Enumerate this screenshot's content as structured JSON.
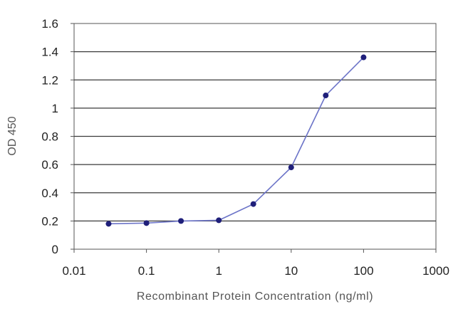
{
  "chart_data": {
    "type": "line",
    "xscale": "log",
    "xlabel": "Recombinant Protein Concentration (ng/ml)",
    "ylabel": "OD 450",
    "xlim": [
      0.01,
      1000
    ],
    "ylim": [
      0,
      1.6
    ],
    "x_ticks": [
      0.01,
      0.1,
      1,
      10,
      100,
      1000
    ],
    "x_tick_labels": [
      "0.01",
      "0.1",
      "1",
      "10",
      "100",
      "1000"
    ],
    "y_ticks": [
      0,
      0.2,
      0.4,
      0.6,
      0.8,
      1,
      1.2,
      1.4,
      1.6
    ],
    "y_tick_labels": [
      "0",
      "0.2",
      "0.4",
      "0.6",
      "0.8",
      "1",
      "1.2",
      "1.4",
      "1.6"
    ],
    "grid": "horizontal",
    "legend": "none",
    "series": [
      {
        "x": [
          0.03,
          0.1,
          0.3,
          1,
          3,
          10,
          30,
          100
        ],
        "y": [
          0.18,
          0.185,
          0.2,
          0.205,
          0.32,
          0.58,
          1.09,
          1.36
        ]
      }
    ],
    "colors": {
      "line": "#6c74c8",
      "marker": "#1f1f7a",
      "grid": "#3a3a3a",
      "frame": "#555555"
    }
  }
}
